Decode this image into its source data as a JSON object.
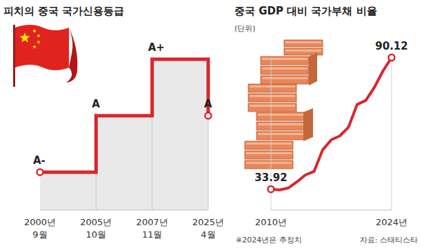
{
  "chart_data": [
    {
      "type": "step",
      "title": "피치의 중국 국가신용등급",
      "categories": [
        "2000년 9월",
        "2005년 10월",
        "2007년 11월",
        "2025년 4월"
      ],
      "values": [
        "A-",
        "A",
        "A+",
        "A"
      ],
      "ycategories": [
        "A-",
        "A",
        "A+"
      ],
      "data_labels": true,
      "tick_labels": "x",
      "color": "#d9262c"
    },
    {
      "type": "line",
      "title": "중국 GDP 대비 국가부채 비율",
      "subtitle": "(단위)",
      "x": [
        2010,
        2011,
        2012,
        2013,
        2014,
        2015,
        2016,
        2017,
        2018,
        2019,
        2020,
        2021,
        2022,
        2023,
        2024
      ],
      "values": [
        33.92,
        33.6,
        34.4,
        37.0,
        40.0,
        41.5,
        50.7,
        55.0,
        56.7,
        60.4,
        70.1,
        71.8,
        77.4,
        84.4,
        90.12
      ],
      "value_labels": [
        "33.92",
        null,
        null,
        null,
        null,
        null,
        null,
        null,
        null,
        null,
        null,
        null,
        null,
        null,
        "90.12"
      ],
      "data_labels": true,
      "xlim": [
        2010,
        2024
      ],
      "xticks": [
        {
          "value": 2010,
          "label": "2010년"
        },
        {
          "value": 2024,
          "label": "2024년"
        }
      ],
      "ylim": [
        25,
        100
      ],
      "tick_labels": "x",
      "color": "#d9262c",
      "notes": [
        "※2024년은 추정치"
      ],
      "source": "자료: 스태티스타"
    }
  ]
}
